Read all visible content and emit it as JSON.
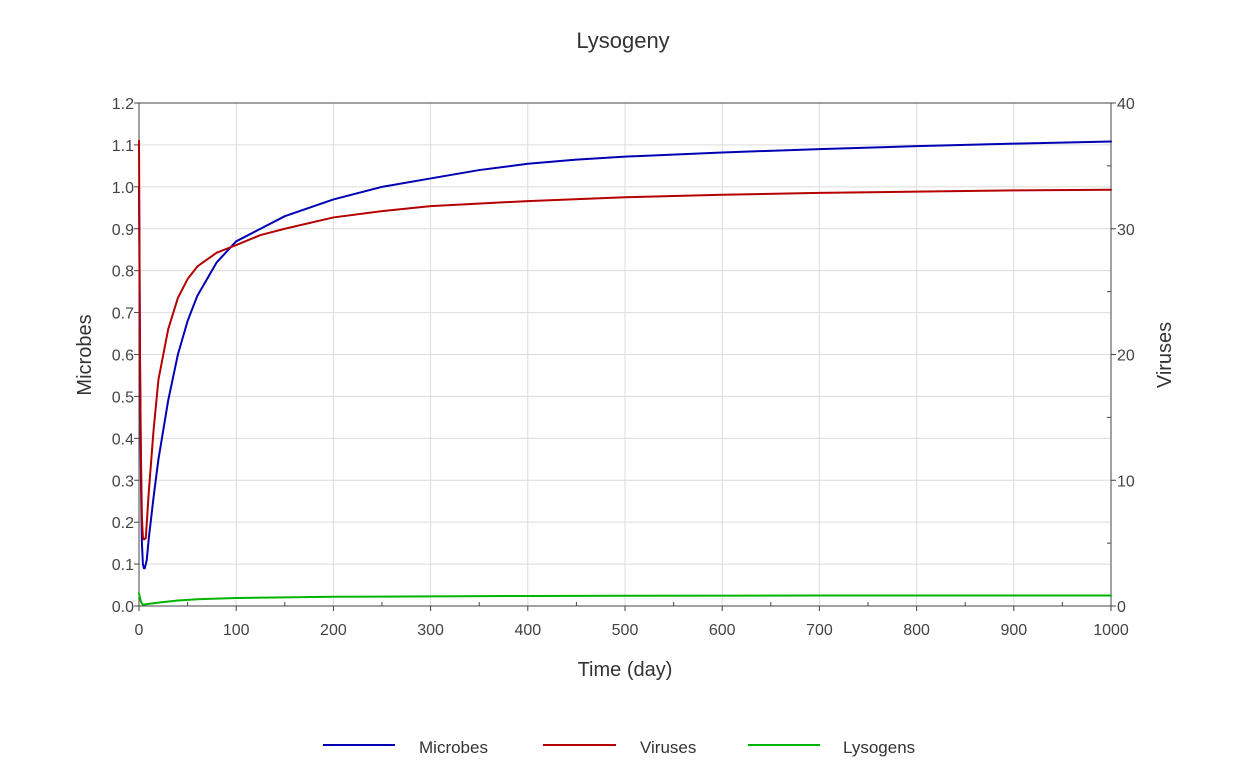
{
  "chart_data": {
    "type": "line",
    "title": "Lysogeny",
    "xlabel": "Time (day)",
    "ylabel": "Microbes",
    "y2label": "Viruses",
    "xlim": [
      0,
      1000
    ],
    "ylim": [
      0,
      1.2
    ],
    "y2lim": [
      0,
      40
    ],
    "grid": true,
    "legend_position": "bottom",
    "x_ticks": [
      "0",
      "100",
      "200",
      "300",
      "400",
      "500",
      "600",
      "700",
      "800",
      "900",
      "1000"
    ],
    "y_ticks": [
      "0.0",
      "0.1",
      "0.2",
      "0.3",
      "0.4",
      "0.5",
      "0.6",
      "0.7",
      "0.8",
      "0.9",
      "1.0",
      "1.1",
      "1.2"
    ],
    "y2_ticks": [
      "0",
      "10",
      "20",
      "30",
      "40"
    ],
    "series": [
      {
        "name": "Microbes",
        "axis": "left",
        "color": "#0000b4",
        "points": [
          [
            0,
            1.0
          ],
          [
            1,
            0.6
          ],
          [
            2,
            0.3
          ],
          [
            3,
            0.15
          ],
          [
            4,
            0.1
          ],
          [
            5,
            0.09
          ],
          [
            6,
            0.09
          ],
          [
            8,
            0.11
          ],
          [
            10,
            0.16
          ],
          [
            15,
            0.26
          ],
          [
            20,
            0.35
          ],
          [
            30,
            0.49
          ],
          [
            40,
            0.6
          ],
          [
            50,
            0.68
          ],
          [
            60,
            0.74
          ],
          [
            80,
            0.82
          ],
          [
            100,
            0.87
          ],
          [
            125,
            0.9
          ],
          [
            150,
            0.93
          ],
          [
            200,
            0.97
          ],
          [
            250,
            1.0
          ],
          [
            300,
            1.02
          ],
          [
            350,
            1.04
          ],
          [
            400,
            1.055
          ],
          [
            450,
            1.065
          ],
          [
            500,
            1.072
          ],
          [
            600,
            1.082
          ],
          [
            700,
            1.09
          ],
          [
            800,
            1.097
          ],
          [
            900,
            1.103
          ],
          [
            1000,
            1.108
          ]
        ]
      },
      {
        "name": "Viruses",
        "axis": "right",
        "color": "#b40000",
        "points": [
          [
            0,
            37
          ],
          [
            1,
            20
          ],
          [
            2,
            12
          ],
          [
            3,
            7
          ],
          [
            4,
            5.5
          ],
          [
            5,
            5.3
          ],
          [
            7,
            5.4
          ],
          [
            10,
            9
          ],
          [
            15,
            14
          ],
          [
            20,
            18
          ],
          [
            30,
            22
          ],
          [
            40,
            24.5
          ],
          [
            50,
            26
          ],
          [
            60,
            27
          ],
          [
            80,
            28.1
          ],
          [
            100,
            28.7
          ],
          [
            125,
            29.5
          ],
          [
            150,
            30
          ],
          [
            200,
            30.9
          ],
          [
            250,
            31.4
          ],
          [
            300,
            31.8
          ],
          [
            400,
            32.2
          ],
          [
            500,
            32.5
          ],
          [
            600,
            32.7
          ],
          [
            700,
            32.85
          ],
          [
            800,
            32.95
          ],
          [
            900,
            33.05
          ],
          [
            1000,
            33.1
          ]
        ]
      },
      {
        "name": "Lysogens",
        "axis": "left",
        "color": "#00b400",
        "points": [
          [
            0,
            0.03
          ],
          [
            2,
            0.01
          ],
          [
            4,
            0.003
          ],
          [
            10,
            0.005
          ],
          [
            20,
            0.008
          ],
          [
            40,
            0.013
          ],
          [
            60,
            0.016
          ],
          [
            100,
            0.019
          ],
          [
            200,
            0.022
          ],
          [
            300,
            0.023
          ],
          [
            400,
            0.024
          ],
          [
            500,
            0.0245
          ],
          [
            700,
            0.025
          ],
          [
            1000,
            0.025
          ]
        ]
      }
    ]
  }
}
